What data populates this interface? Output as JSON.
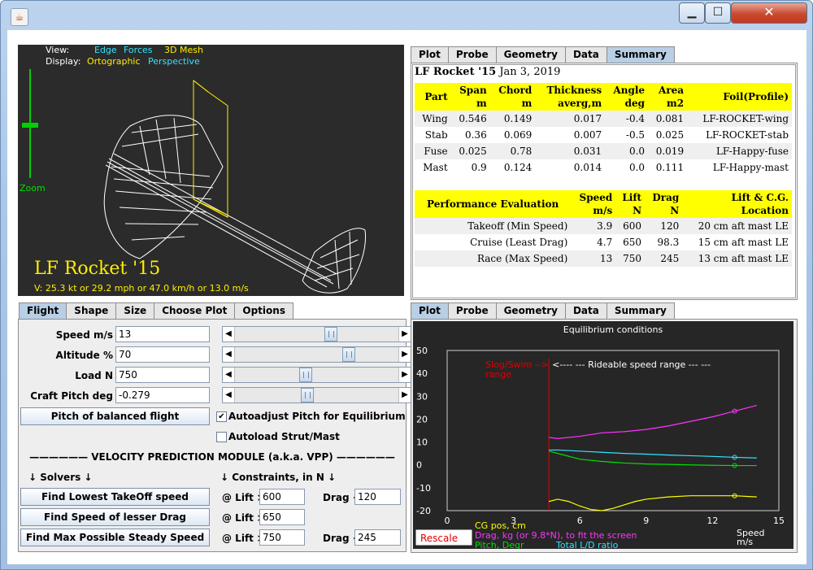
{
  "window": {
    "app_icon": "java-cup-icon",
    "minimize_label": "▁",
    "maximize_label": "☐",
    "close_label": "✕"
  },
  "view3d": {
    "view_label": "View:",
    "view_opt1": "Edge",
    "view_opt2": "Forces",
    "view_opt3": "3D Mesh",
    "display_label": "Display:",
    "display_opt1": "Ortographic",
    "display_opt2": "Perspective",
    "zoom_label": "Zoom",
    "title": "LF Rocket '15",
    "speed_readout": "V: 25.3 kt or 29.2 mph or 47.0 km/h or 13.0 m/s"
  },
  "top_tabs": [
    "Plot",
    "Probe",
    "Geometry",
    "Data",
    "Summary"
  ],
  "summary": {
    "name": "LF Rocket '15",
    "date": "Jan 3, 2019",
    "parts_headers": [
      [
        "Part",
        ""
      ],
      [
        "Span",
        "m"
      ],
      [
        "Chord",
        "m"
      ],
      [
        "Thickness",
        "averg,m"
      ],
      [
        "Angle",
        "deg"
      ],
      [
        "Area",
        "m2"
      ],
      [
        "Foil(Profile)",
        ""
      ]
    ],
    "parts": [
      [
        "Wing",
        "0.546",
        "0.149",
        "0.017",
        "-0.4",
        "0.081",
        "LF-ROCKET-wing"
      ],
      [
        "Stab",
        "0.36",
        "0.069",
        "0.007",
        "-0.5",
        "0.025",
        "LF-ROCKET-stab"
      ],
      [
        "Fuse",
        "0.025",
        "0.78",
        "0.031",
        "0.0",
        "0.019",
        "LF-Happy-fuse"
      ],
      [
        "Mast",
        "0.9",
        "0.124",
        "0.014",
        "0.0",
        "0.111",
        "LF-Happy-mast"
      ]
    ],
    "perf_headers": [
      [
        "Performance Evaluation",
        ""
      ],
      [
        "Speed",
        "m/s"
      ],
      [
        "Lift",
        "N"
      ],
      [
        "Drag",
        "N"
      ],
      [
        "Lift & C.G.",
        "Location"
      ]
    ],
    "perf": [
      [
        "Takeoff (Min Speed)",
        "3.9",
        "600",
        "120",
        "20 cm aft mast LE"
      ],
      [
        "Cruise (Least Drag)",
        "4.7",
        "650",
        "98.3",
        "15 cm aft mast LE"
      ],
      [
        "Race (Max Speed)",
        "13",
        "750",
        "245",
        "13 cm aft mast LE"
      ]
    ]
  },
  "left_tabs": [
    "Flight",
    "Shape",
    "Size",
    "Choose Plot",
    "Options"
  ],
  "flight": {
    "speed_label": "Speed m/s",
    "speed_value": "13",
    "speed_slider": 0.58,
    "altitude_label": "Altitude %",
    "altitude_value": "70",
    "altitude_slider": 0.7,
    "load_label": "Load N",
    "load_value": "750",
    "load_slider": 0.42,
    "pitch_label": "Craft Pitch deg",
    "pitch_value": "-0.279",
    "pitch_slider": 0.43,
    "balanced_button": "Pitch of balanced flight",
    "autoadjust_label": "Autoadjust Pitch for Equilibrium",
    "autoadjust_checked": true,
    "autoadjust_mark": "✔",
    "autoload_label": "Autoload Strut/Mast",
    "autoload_checked": false,
    "vpp_title": "—————— VELOCITY PREDICTION MODULE (a.k.a. VPP) ——————",
    "solvers_label": "↓   Solvers   ↓",
    "constraints_label": "↓   Constraints, in N   ↓",
    "btn_takeoff": "Find Lowest TakeOff speed",
    "btn_drag": "Find Speed of lesser Drag",
    "btn_max": "Find Max Possible Steady Speed",
    "lift_label": "@ Lift >",
    "drag_label": "Drag <",
    "takeoff_lift": "600",
    "takeoff_drag": "120",
    "lessdrag_lift": "650",
    "max_lift": "750",
    "max_drag": "245",
    "arrow_left": "◀",
    "arrow_right": "▶"
  },
  "bottom_tabs": [
    "Plot",
    "Probe",
    "Geometry",
    "Data",
    "Summary"
  ],
  "chart_data": {
    "type": "line",
    "title": "Equilibrium conditions",
    "xlim": [
      0,
      15
    ],
    "ylim": [
      -20,
      50
    ],
    "xticks": [
      0,
      3,
      6,
      9,
      12,
      15
    ],
    "yticks": [
      50,
      40,
      30,
      20,
      10,
      0,
      -10,
      -20
    ],
    "xlabel": "Speed\nm/s",
    "xlabel_line1": "Speed",
    "xlabel_line2": "m/s",
    "marker_line_x": 4.6,
    "slog_annotation": "Slog/Swim -->",
    "slog_annotation2": "range",
    "rideable_annotation": "<---- --- Rideable speed range --- ---",
    "series": [
      {
        "name": "CG pos, cm",
        "color": "#ffff00",
        "x": [
          4.6,
          5.0,
          5.5,
          6.0,
          6.5,
          7.0,
          7.5,
          8.0,
          8.5,
          9.0,
          10.0,
          11.0,
          12.0,
          13.0,
          14.0
        ],
        "y": [
          -16,
          -15,
          -16,
          -18,
          -19.5,
          -20,
          -19,
          -17.5,
          -16,
          -15,
          -14,
          -13.5,
          -13.5,
          -13.5,
          -14
        ]
      },
      {
        "name": "Drag, kg (or 9.8*N), to fit the screen",
        "color": "#ff33ff",
        "x": [
          4.6,
          5.0,
          6.0,
          7.0,
          8.0,
          9.0,
          10.0,
          11.0,
          12.0,
          13.0,
          14.0
        ],
        "y": [
          12,
          11.5,
          12.5,
          14,
          14.5,
          15.5,
          17,
          19,
          21,
          23.5,
          26
        ]
      },
      {
        "name": "Pitch, Degr",
        "color": "#00e000",
        "x": [
          4.6,
          5.0,
          6.0,
          7.0,
          8.0,
          9.0,
          10.0,
          11.0,
          12.0,
          13.0,
          14.0
        ],
        "y": [
          6,
          5,
          2.5,
          1.5,
          0.8,
          0.4,
          0.2,
          0.0,
          -0.2,
          -0.3,
          -0.3
        ]
      },
      {
        "name": "Total L/D ratio",
        "color": "#33e3ff",
        "x": [
          4.6,
          5.0,
          6.0,
          7.0,
          8.0,
          9.0,
          10.0,
          11.0,
          12.0,
          13.0,
          14.0
        ],
        "y": [
          6.5,
          6.5,
          6,
          5.5,
          5,
          4.7,
          4.3,
          4,
          3.7,
          3.3,
          3
        ]
      }
    ],
    "highlight_x": 13,
    "rescale_label": "Rescale",
    "legend_cg": "CG pos, cm",
    "legend_drag": "Drag, kg (or 9.8*N), to fit the screen",
    "legend_pitch": "Pitch, Degr",
    "legend_ld": "Total L/D ratio"
  }
}
